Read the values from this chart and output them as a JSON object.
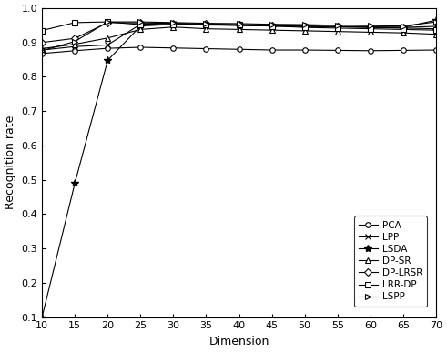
{
  "x": [
    10,
    15,
    20,
    25,
    30,
    35,
    40,
    45,
    50,
    55,
    60,
    65,
    70
  ],
  "PCA": [
    0.868,
    0.876,
    0.883,
    0.886,
    0.884,
    0.882,
    0.88,
    0.878,
    0.878,
    0.877,
    0.876,
    0.877,
    0.878
  ],
  "LPP": [
    0.878,
    0.888,
    0.893,
    0.953,
    0.955,
    0.952,
    0.95,
    0.948,
    0.947,
    0.946,
    0.945,
    0.944,
    0.947
  ],
  "LSDA": [
    0.1,
    0.49,
    0.848,
    0.948,
    0.953,
    0.951,
    0.95,
    0.948,
    0.947,
    0.946,
    0.945,
    0.944,
    0.965
  ],
  "DP-SR": [
    0.882,
    0.895,
    0.913,
    0.938,
    0.945,
    0.94,
    0.938,
    0.936,
    0.934,
    0.932,
    0.93,
    0.928,
    0.924
  ],
  "DP-LRSR": [
    0.9,
    0.912,
    0.958,
    0.957,
    0.956,
    0.954,
    0.952,
    0.95,
    0.948,
    0.946,
    0.944,
    0.942,
    0.94
  ],
  "LRR-DP": [
    0.935,
    0.958,
    0.96,
    0.952,
    0.951,
    0.953,
    0.951,
    0.948,
    0.944,
    0.942,
    0.94,
    0.938,
    0.936
  ],
  "LSPP": [
    0.876,
    0.903,
    0.96,
    0.96,
    0.958,
    0.956,
    0.955,
    0.953,
    0.952,
    0.95,
    0.949,
    0.948,
    0.96
  ],
  "xlabel": "Dimension",
  "ylabel": "Recognition rate",
  "xlim": [
    10,
    70
  ],
  "ylim": [
    0.1,
    1.0
  ],
  "xticks": [
    10,
    15,
    20,
    25,
    30,
    35,
    40,
    45,
    50,
    55,
    60,
    65,
    70
  ],
  "yticks": [
    0.1,
    0.2,
    0.3,
    0.4,
    0.5,
    0.6,
    0.7,
    0.8,
    0.9,
    1.0
  ]
}
